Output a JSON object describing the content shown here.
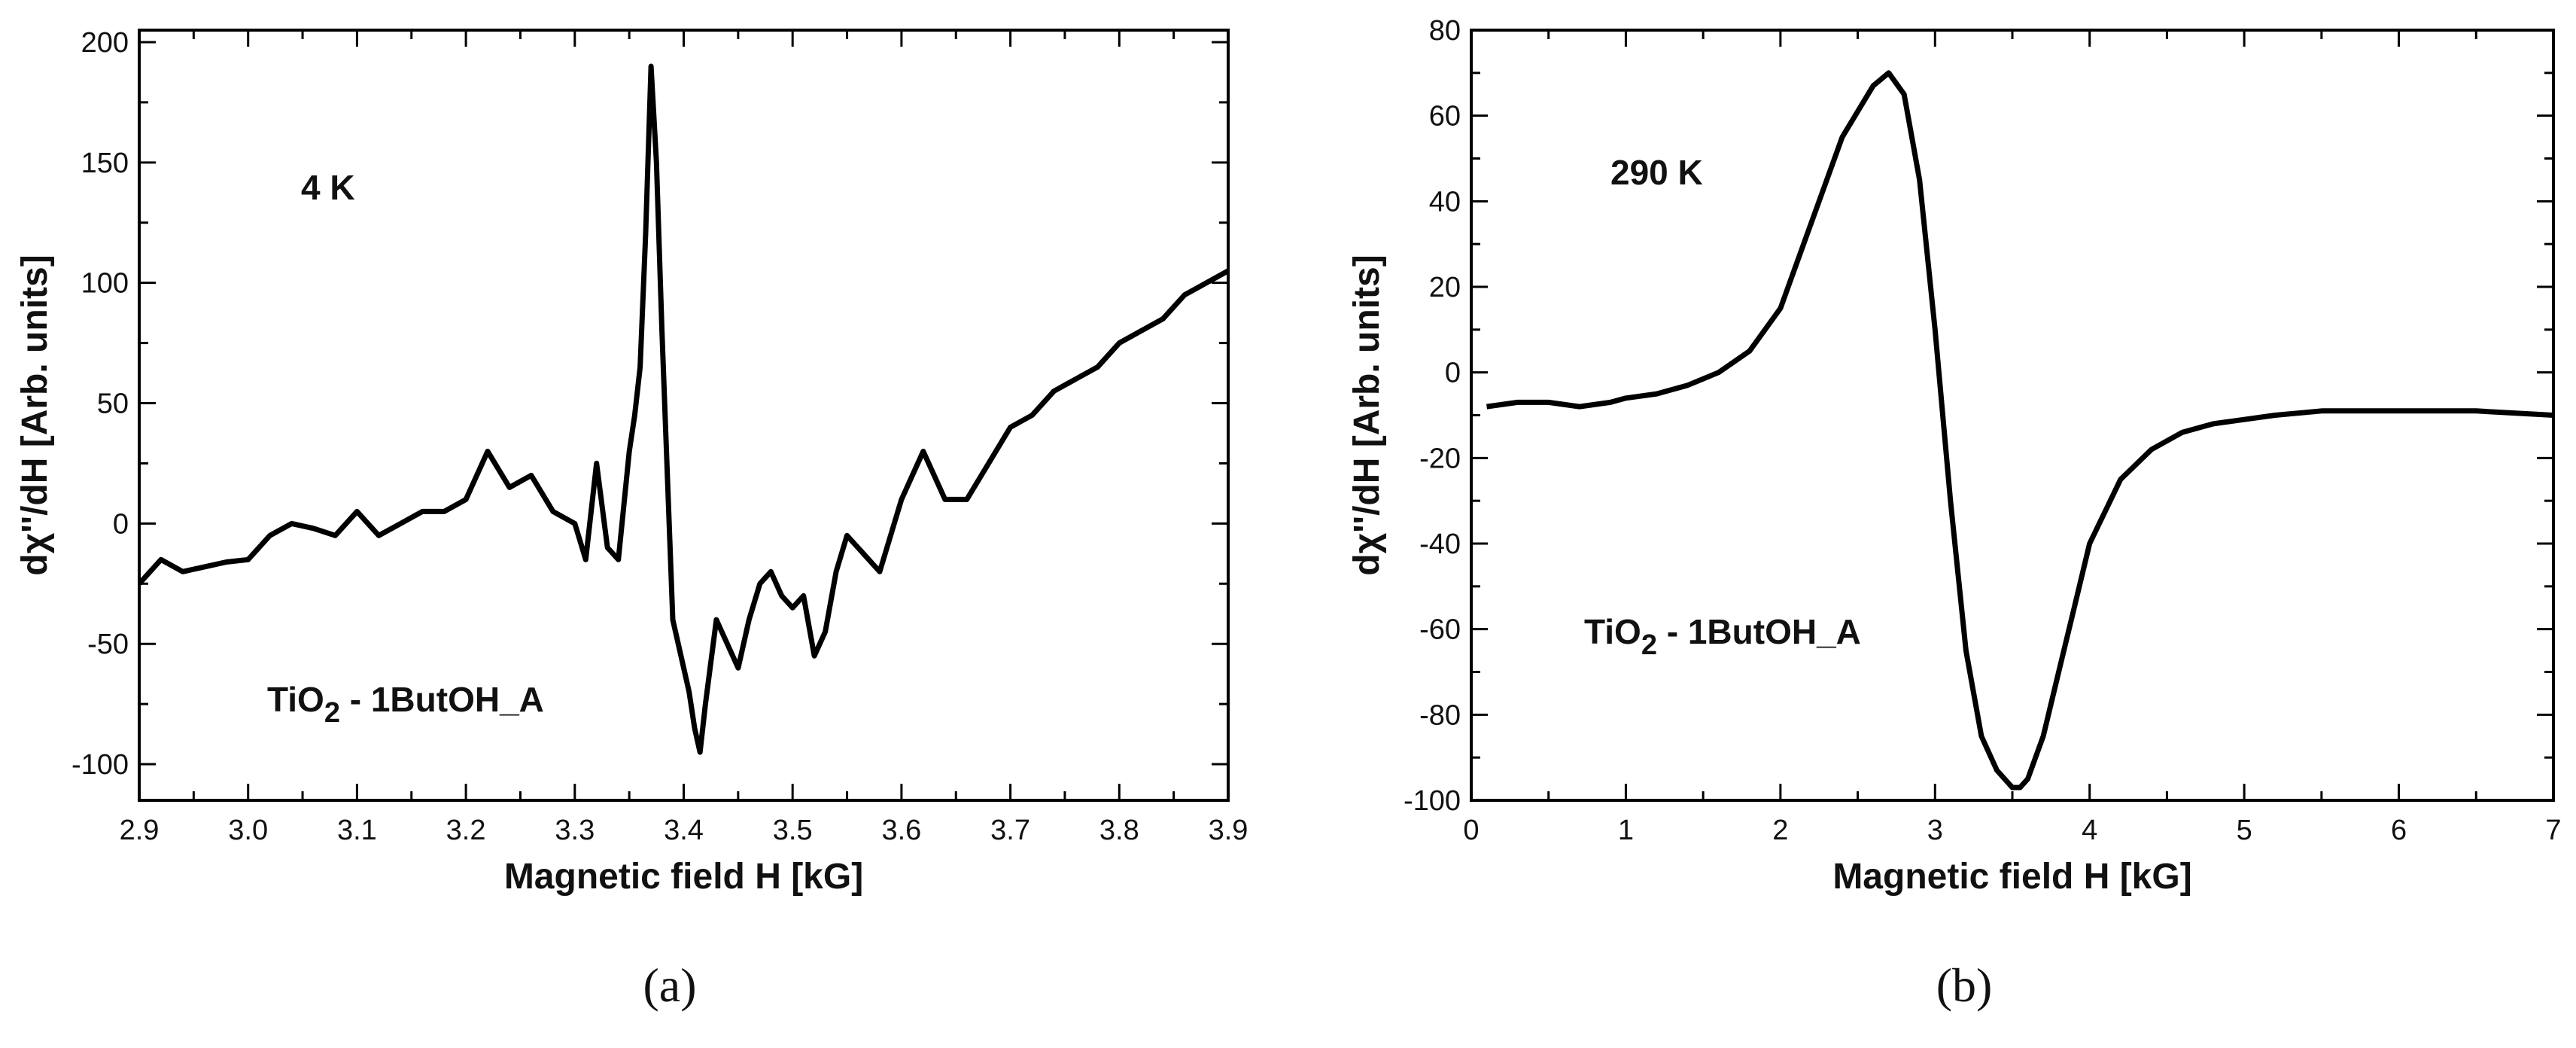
{
  "chart_data": [
    {
      "type": "line",
      "panel_label": "(a)",
      "xlabel": "Magnetic field H [kG]",
      "ylabel": "dχ''/dH [Arb. units]",
      "xlim": [
        2.9,
        3.9
      ],
      "ylim": [
        -115,
        205
      ],
      "xticks": [
        "2.9",
        "3.0",
        "3.1",
        "3.2",
        "3.3",
        "3.4",
        "3.5",
        "3.6",
        "3.7",
        "3.8",
        "3.9"
      ],
      "yticks": [
        "-100",
        "-50",
        "0",
        "50",
        "100",
        "150",
        "200"
      ],
      "annotations": [
        {
          "text": "4 K"
        },
        {
          "text": "TiO",
          "sub": "2",
          "after": " - 1ButOH_A"
        }
      ],
      "grid": false,
      "series": [
        {
          "color": "#000000",
          "x": [
            2.9,
            2.92,
            2.94,
            2.96,
            2.98,
            3.0,
            3.02,
            3.04,
            3.06,
            3.08,
            3.1,
            3.12,
            3.14,
            3.16,
            3.18,
            3.2,
            3.22,
            3.24,
            3.26,
            3.28,
            3.3,
            3.31,
            3.32,
            3.33,
            3.34,
            3.35,
            3.355,
            3.36,
            3.365,
            3.37,
            3.375,
            3.38,
            3.385,
            3.39,
            3.4,
            3.405,
            3.41,
            3.415,
            3.42,
            3.43,
            3.44,
            3.45,
            3.46,
            3.47,
            3.48,
            3.49,
            3.5,
            3.51,
            3.52,
            3.53,
            3.54,
            3.55,
            3.56,
            3.58,
            3.6,
            3.62,
            3.64,
            3.66,
            3.68,
            3.7,
            3.72,
            3.74,
            3.76,
            3.78,
            3.8,
            3.82,
            3.84,
            3.86,
            3.88,
            3.9
          ],
          "y": [
            -25,
            -15,
            -20,
            -18,
            -16,
            -15,
            -5,
            0,
            -2,
            -5,
            5,
            -5,
            0,
            5,
            5,
            10,
            30,
            15,
            20,
            5,
            0,
            -15,
            25,
            -10,
            -15,
            30,
            45,
            65,
            120,
            190,
            150,
            80,
            20,
            -40,
            -60,
            -70,
            -85,
            -95,
            -75,
            -40,
            -50,
            -60,
            -40,
            -25,
            -20,
            -30,
            -35,
            -30,
            -55,
            -45,
            -20,
            -5,
            -10,
            -20,
            10,
            30,
            10,
            10,
            25,
            40,
            45,
            55,
            60,
            65,
            75,
            80,
            85,
            95,
            100,
            105
          ]
        }
      ]
    },
    {
      "type": "line",
      "panel_label": "(b)",
      "xlabel": "Magnetic field H [kG]",
      "ylabel": "dχ''/dH [Arb. units]",
      "xlim": [
        0,
        7
      ],
      "ylim": [
        -100,
        80
      ],
      "xticks": [
        "0",
        "1",
        "2",
        "3",
        "4",
        "5",
        "6",
        "7"
      ],
      "yticks": [
        "-100",
        "-80",
        "-60",
        "-40",
        "-20",
        "0",
        "20",
        "40",
        "60",
        "80"
      ],
      "annotations": [
        {
          "text": "290 K"
        },
        {
          "text": "TiO",
          "sub": "2",
          "after": " - 1ButOH_A"
        }
      ],
      "grid": false,
      "series": [
        {
          "color": "#000000",
          "x": [
            0.1,
            0.3,
            0.5,
            0.7,
            0.9,
            1.0,
            1.2,
            1.4,
            1.6,
            1.8,
            2.0,
            2.2,
            2.4,
            2.6,
            2.7,
            2.8,
            2.9,
            3.0,
            3.1,
            3.2,
            3.3,
            3.4,
            3.5,
            3.55,
            3.6,
            3.7,
            3.8,
            3.9,
            4.0,
            4.2,
            4.4,
            4.6,
            4.8,
            5.0,
            5.2,
            5.5,
            6.0,
            6.5,
            7.0
          ],
          "y": [
            -8,
            -7,
            -7,
            -8,
            -7,
            -6,
            -5,
            -3,
            0,
            5,
            15,
            35,
            55,
            67,
            70,
            65,
            45,
            10,
            -30,
            -65,
            -85,
            -93,
            -97,
            -97,
            -95,
            -85,
            -70,
            -55,
            -40,
            -25,
            -18,
            -14,
            -12,
            -11,
            -10,
            -9,
            -9,
            -9,
            -10
          ]
        }
      ]
    }
  ]
}
